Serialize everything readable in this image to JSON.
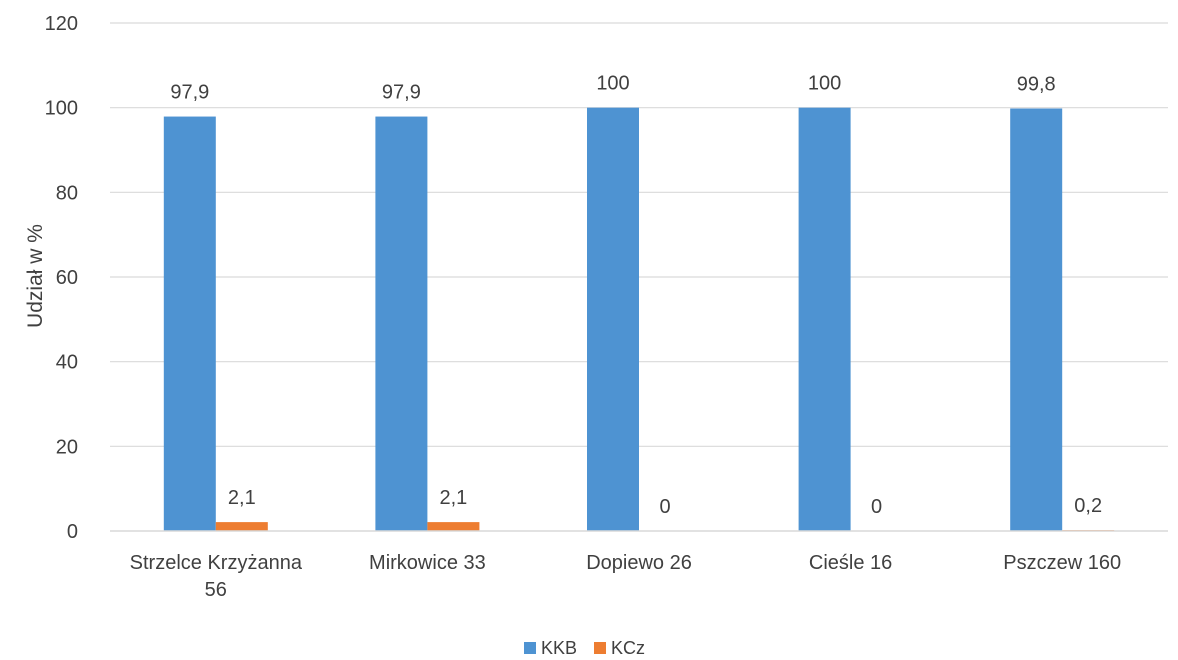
{
  "chart_data": {
    "type": "bar",
    "ylabel": "Udział w %",
    "ylim": [
      0,
      120
    ],
    "yticks": [
      0,
      20,
      40,
      60,
      80,
      100,
      120
    ],
    "categories": [
      [
        "Strzelce Krzyżanna",
        "56"
      ],
      [
        "Mirkowice 33"
      ],
      [
        "Dopiewo  26"
      ],
      [
        "Cieśle 16"
      ],
      [
        "Pszczew 160"
      ]
    ],
    "series": [
      {
        "name": "KKB",
        "color": "#4E93D2",
        "values": [
          97.9,
          97.9,
          100,
          100,
          99.8
        ],
        "labels": [
          "97,9",
          "97,9",
          "100",
          "100",
          "99,8"
        ]
      },
      {
        "name": "KCz",
        "color": "#ED7D31",
        "values": [
          2.1,
          2.1,
          0,
          0,
          0.2
        ],
        "labels": [
          "2,1",
          "2,1",
          "0",
          "0",
          "0,2"
        ]
      }
    ],
    "grid": true,
    "legend_position": "bottom"
  }
}
